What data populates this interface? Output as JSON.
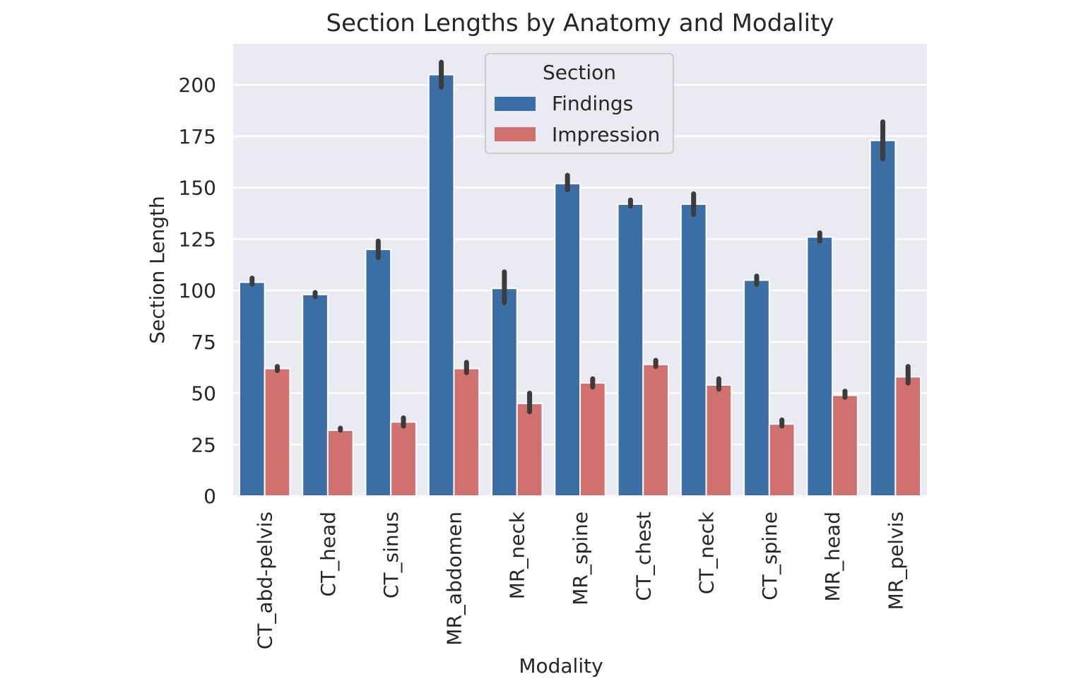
{
  "chart_data": {
    "type": "bar",
    "title": "Section Lengths by Anatomy and Modality",
    "xlabel": "Modality",
    "ylabel": "Section Length",
    "ylim": [
      0,
      220
    ],
    "yticks": [
      0,
      25,
      50,
      75,
      100,
      125,
      150,
      175,
      200
    ],
    "grid": true,
    "legend": {
      "title": "Section",
      "position": "top-center"
    },
    "categories": [
      "CT_abd-pelvis",
      "CT_head",
      "CT_sinus",
      "MR_abdomen",
      "MR_neck",
      "MR_spine",
      "CT_chest",
      "CT_neck",
      "CT_spine",
      "MR_head",
      "MR_pelvis"
    ],
    "series": [
      {
        "name": "Findings",
        "color": "#3b6ea5",
        "values": [
          104,
          98,
          120,
          205,
          101,
          152,
          142,
          142,
          105,
          126,
          173
        ],
        "error_low": [
          103,
          97,
          116,
          199,
          94,
          149,
          141,
          137,
          103,
          124,
          164
        ],
        "error_high": [
          106,
          99,
          124,
          211,
          109,
          156,
          144,
          147,
          107,
          128,
          182
        ]
      },
      {
        "name": "Impression",
        "color": "#d0706f",
        "values": [
          62,
          32,
          36,
          62,
          45,
          55,
          64,
          54,
          35,
          49,
          58
        ],
        "error_low": [
          61,
          32,
          34,
          60,
          41,
          53,
          63,
          52,
          34,
          48,
          55
        ],
        "error_high": [
          63,
          33,
          38,
          65,
          50,
          57,
          66,
          57,
          37,
          51,
          63
        ]
      }
    ]
  }
}
